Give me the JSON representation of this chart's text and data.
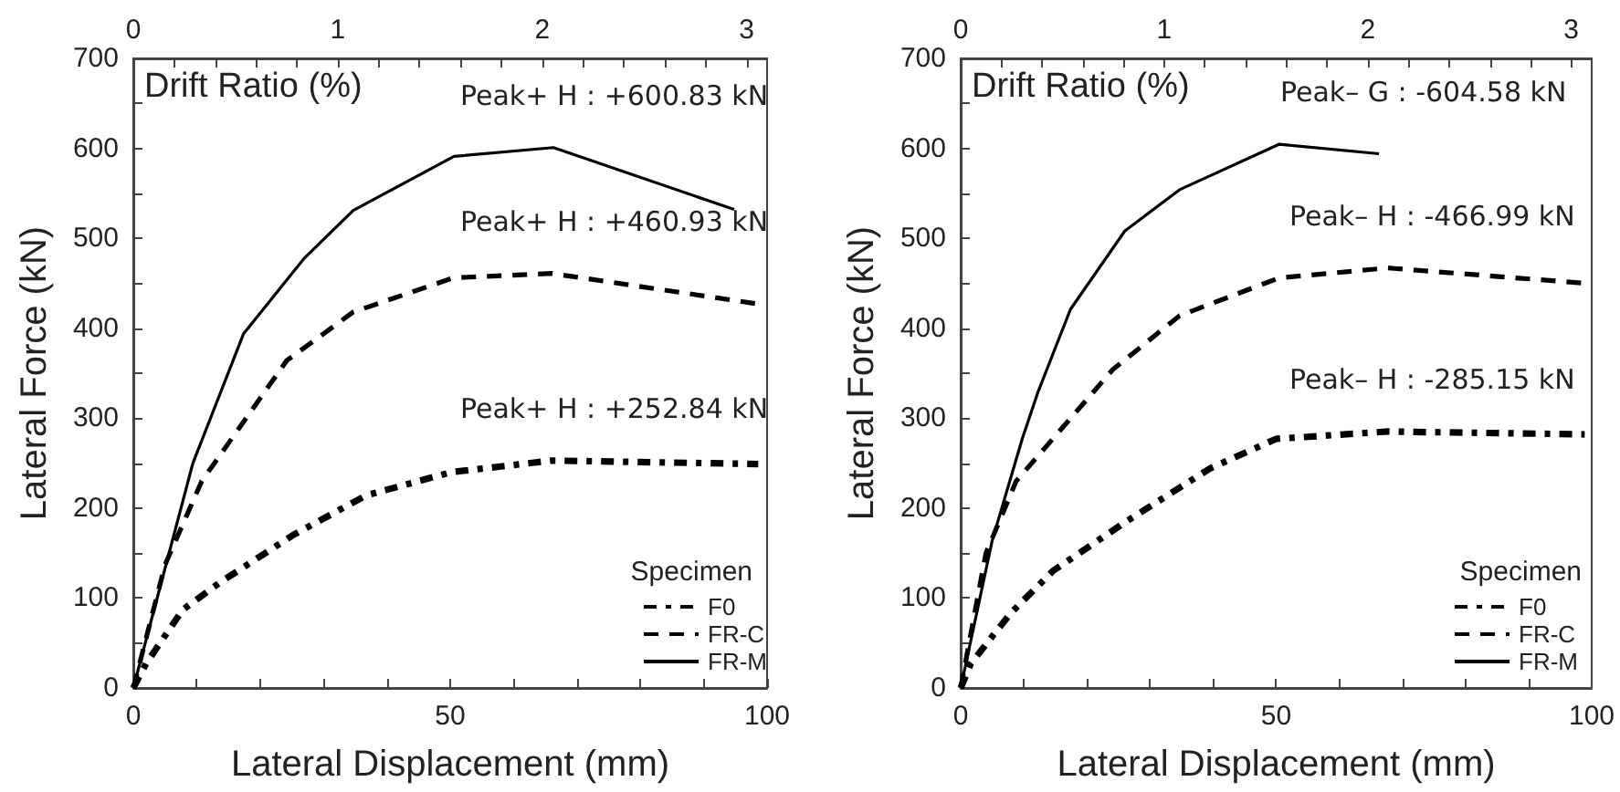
{
  "chart_data": [
    {
      "type": "line",
      "xlabel": "Lateral Displacement (mm)",
      "ylabel": "Lateral Force (kN)",
      "x2label": "Drift Ratio (%)",
      "legend_title": "Specimen",
      "legend": "bottom right",
      "xlim": [
        0,
        100
      ],
      "xticks": [
        0,
        {
          "value": 10,
          "label": null
        },
        {
          "value": 20,
          "label": null
        },
        {
          "value": 30,
          "label": null
        },
        {
          "value": 40,
          "label": null
        },
        50,
        {
          "value": 60,
          "label": null
        },
        {
          "value": 70,
          "label": null
        },
        {
          "value": 80,
          "label": null
        },
        {
          "value": 90,
          "label": null
        },
        100
      ],
      "ylim": [
        0,
        700
      ],
      "yticks": [
        0,
        {
          "value": 50,
          "label": null
        },
        100,
        {
          "value": 150,
          "label": null
        },
        200,
        {
          "value": 250,
          "label": null
        },
        300,
        {
          "value": 350,
          "label": null
        },
        400,
        {
          "value": 450,
          "label": null
        },
        500,
        {
          "value": 550,
          "label": null
        },
        600,
        {
          "value": 650,
          "label": null
        },
        700
      ],
      "x2lim": [
        0,
        3.1
      ],
      "x2ticks": [
        0,
        {
          "value": 0.2,
          "label": null
        },
        {
          "value": 0.4,
          "label": null
        },
        {
          "value": 0.6,
          "label": null
        },
        {
          "value": 0.8,
          "label": null
        },
        1,
        {
          "value": 1.2,
          "label": null
        },
        {
          "value": 1.4,
          "label": null
        },
        {
          "value": 1.6,
          "label": null
        },
        {
          "value": 1.8,
          "label": null
        },
        2,
        {
          "value": 2.2,
          "label": null
        },
        {
          "value": 2.4,
          "label": null
        },
        {
          "value": 2.6,
          "label": null
        },
        {
          "value": 2.8,
          "label": null
        },
        3
      ],
      "series": [
        {
          "name": "F0",
          "color": "#000000",
          "line_style": "dashdot",
          "x": [
            0,
            2,
            7.8,
            13.6,
            25.2,
            36.7,
            50.2,
            66,
            98.6
          ],
          "values": [
            0,
            27,
            87,
            117,
            170,
            214,
            240,
            252.84,
            249
          ]
        },
        {
          "name": "FR-C",
          "color": "#000000",
          "line_style": "dashed",
          "x": [
            0,
            5,
            10.8,
            24.2,
            34.7,
            50.5,
            66,
            98.6
          ],
          "values": [
            0,
            137,
            230,
            364,
            418,
            456,
            460.93,
            427
          ]
        },
        {
          "name": "FR-M",
          "color": "#000000",
          "line_style": "solid",
          "x": [
            0,
            9.4,
            17.4,
            27,
            34.7,
            50.6,
            66.3,
            94.8
          ],
          "values": [
            0,
            250,
            394,
            478,
            531,
            591,
            600.83,
            532
          ]
        }
      ],
      "annotations": [
        {
          "text": "Peak+ H : +600.83 kN",
          "x": 66.3,
          "y": 600.83
        },
        {
          "text": "Peak+ H : +460.93 kN",
          "x": 66,
          "y": 460.93
        },
        {
          "text": "Peak+ H : +252.84 kN",
          "x": 66,
          "y": 252.84
        }
      ]
    },
    {
      "type": "line",
      "xlabel": "Lateral Displacement (mm)",
      "ylabel": "Lateral Force (kN)",
      "x2label": "Drift Ratio (%)",
      "legend_title": "Specimen",
      "legend": "bottom right",
      "xlim": [
        0,
        100
      ],
      "xticks": [
        0,
        {
          "value": 10,
          "label": null
        },
        {
          "value": 20,
          "label": null
        },
        {
          "value": 30,
          "label": null
        },
        {
          "value": 40,
          "label": null
        },
        50,
        {
          "value": 60,
          "label": null
        },
        {
          "value": 70,
          "label": null
        },
        {
          "value": 80,
          "label": null
        },
        {
          "value": 90,
          "label": null
        },
        100
      ],
      "ylim": [
        0,
        700
      ],
      "yticks": [
        0,
        {
          "value": 50,
          "label": null
        },
        100,
        {
          "value": 150,
          "label": null
        },
        200,
        {
          "value": 250,
          "label": null
        },
        300,
        {
          "value": 350,
          "label": null
        },
        400,
        {
          "value": 450,
          "label": null
        },
        500,
        {
          "value": 550,
          "label": null
        },
        600,
        {
          "value": 650,
          "label": null
        },
        700
      ],
      "x2lim": [
        0,
        3.1
      ],
      "x2ticks": [
        0,
        {
          "value": 0.2,
          "label": null
        },
        {
          "value": 0.4,
          "label": null
        },
        {
          "value": 0.6,
          "label": null
        },
        {
          "value": 0.8,
          "label": null
        },
        1,
        {
          "value": 1.2,
          "label": null
        },
        {
          "value": 1.4,
          "label": null
        },
        {
          "value": 1.6,
          "label": null
        },
        {
          "value": 1.8,
          "label": null
        },
        2,
        {
          "value": 2.2,
          "label": null
        },
        {
          "value": 2.4,
          "label": null
        },
        {
          "value": 2.6,
          "label": null
        },
        {
          "value": 2.8,
          "label": null
        },
        3
      ],
      "series": [
        {
          "name": "F0",
          "color": "#000000",
          "line_style": "dashdot",
          "x": [
            0,
            1.6,
            7.9,
            14.6,
            26,
            39.5,
            50,
            67.7,
            98.9
          ],
          "values": [
            0,
            27,
            83,
            130,
            184,
            244,
            277,
            285.15,
            282
          ]
        },
        {
          "name": "FR-C",
          "color": "#000000",
          "line_style": "dashed",
          "x": [
            0,
            4,
            8.8,
            24.1,
            34.7,
            50.5,
            67.7,
            98.9
          ],
          "values": [
            0,
            150,
            230,
            354,
            414,
            456,
            466.99,
            450
          ]
        },
        {
          "name": "FR-M",
          "color": "#000000",
          "line_style": "solid",
          "x": [
            0,
            5,
            9.8,
            12.2,
            17.4,
            26,
            34.7,
            50.5,
            66.3
          ],
          "values": [
            0,
            164,
            278,
            328,
            421,
            508,
            554,
            604.58,
            594
          ]
        }
      ],
      "annotations": [
        {
          "text": "Peak– G : -604.58 kN",
          "x": 50.5,
          "y": 604.58
        },
        {
          "text": "Peak– H : -466.99 kN",
          "x": 67.7,
          "y": 466.99
        },
        {
          "text": "Peak– H : -285.15 kN",
          "x": 67.7,
          "y": 285.15
        }
      ]
    }
  ]
}
